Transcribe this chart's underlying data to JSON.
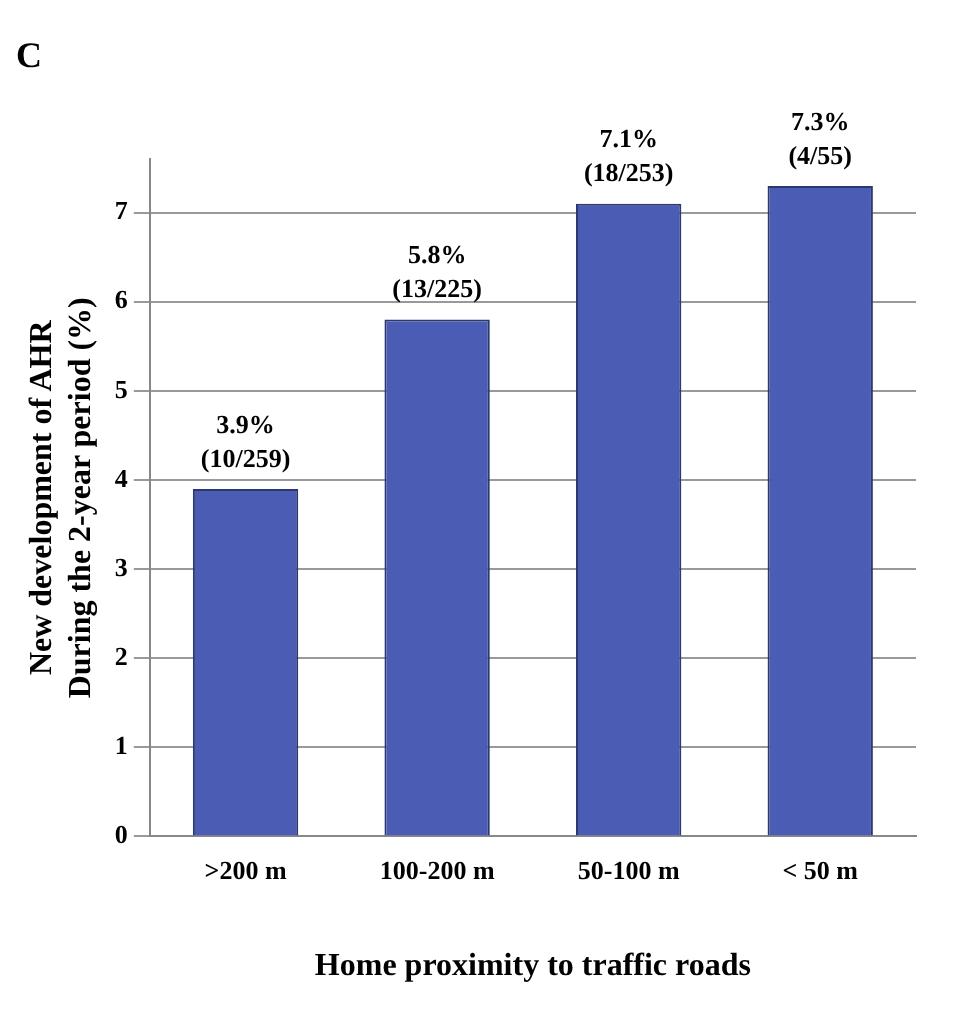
{
  "chart_data": {
    "type": "bar",
    "title": "C",
    "xlabel": "Home proximity to traffic roads",
    "ylabel": "New development of AHR\nDuring the 2-year period (%)",
    "categories": [
      ">200 m",
      "100-200 m",
      "50-100 m",
      "< 50 m"
    ],
    "values": [
      3.9,
      5.8,
      7.1,
      7.3
    ],
    "color": "#4a5cb4",
    "value_labels": [
      "3.9%\n(10/259)",
      "5.8%\n(13/225)",
      "7.1%\n(18/253)",
      "7.3%\n(4/55)"
    ],
    "ylim": [
      0,
      7.6
    ],
    "yticks": [
      0,
      1,
      2,
      3,
      4,
      5,
      6,
      7
    ],
    "grid": "y"
  }
}
